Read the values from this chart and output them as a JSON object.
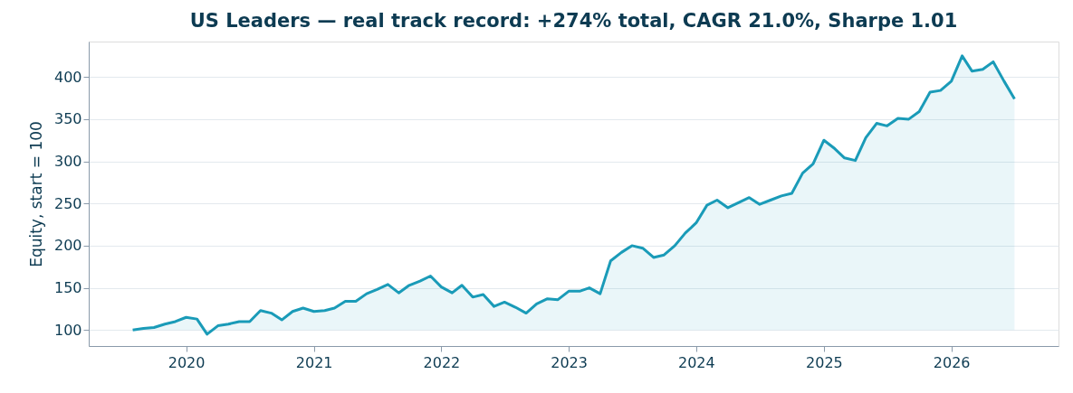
{
  "chart_data": {
    "type": "area",
    "title": "US Leaders — real track record: +274% total, CAGR 21.0%, Sharpe 1.01",
    "ylabel": "Equity, start = 100",
    "x": [
      "2019-08",
      "2019-09",
      "2019-10",
      "2019-11",
      "2019-12",
      "2020-01",
      "2020-02",
      "2020-03",
      "2020-04",
      "2020-05",
      "2020-06",
      "2020-07",
      "2020-08",
      "2020-09",
      "2020-10",
      "2020-11",
      "2020-12",
      "2021-01",
      "2021-02",
      "2021-03",
      "2021-04",
      "2021-05",
      "2021-06",
      "2021-07",
      "2021-08",
      "2021-09",
      "2021-10",
      "2021-11",
      "2021-12",
      "2022-01",
      "2022-02",
      "2022-03",
      "2022-04",
      "2022-05",
      "2022-06",
      "2022-07",
      "2022-08",
      "2022-09",
      "2022-10",
      "2022-11",
      "2022-12",
      "2023-01",
      "2023-02",
      "2023-03",
      "2023-04",
      "2023-05",
      "2023-06",
      "2023-07",
      "2023-08",
      "2023-09",
      "2023-10",
      "2023-11",
      "2023-12",
      "2024-01",
      "2024-02",
      "2024-03",
      "2024-04",
      "2024-05",
      "2024-06",
      "2024-07",
      "2024-08",
      "2024-09",
      "2024-10",
      "2024-11",
      "2024-12",
      "2025-01",
      "2025-02",
      "2025-03",
      "2025-04",
      "2025-05",
      "2025-06",
      "2025-07",
      "2025-08",
      "2025-09",
      "2025-10",
      "2025-11",
      "2025-12",
      "2026-01",
      "2026-02",
      "2026-03",
      "2026-04",
      "2026-05",
      "2026-06",
      "2026-07"
    ],
    "series": [
      {
        "color": "#1a9bb8",
        "values": [
          100,
          102,
          103,
          107,
          110,
          115,
          113,
          95,
          105,
          107,
          110,
          110,
          123,
          120,
          112,
          122,
          126,
          122,
          123,
          126,
          134,
          134,
          143,
          148,
          154,
          144,
          153,
          158,
          164,
          151,
          144,
          153,
          139,
          142,
          128,
          133,
          127,
          120,
          131,
          137,
          136,
          146,
          146,
          150,
          143,
          182,
          192,
          200,
          197,
          186,
          189,
          200,
          215,
          227,
          248,
          254,
          245,
          251,
          257,
          249,
          254,
          259,
          262,
          286,
          297,
          325,
          315,
          304,
          301,
          328,
          345,
          342,
          351,
          350,
          359,
          382,
          384,
          395,
          425,
          407,
          409,
          418,
          395,
          374
        ]
      }
    ],
    "xlim": [
      "2019-03-28",
      "2026-11-04"
    ],
    "xticks": [
      "2020",
      "2021",
      "2022",
      "2023",
      "2024",
      "2025",
      "2026"
    ],
    "ylim": [
      81,
      442
    ],
    "yticks": [
      100,
      150,
      200,
      250,
      300,
      350,
      400
    ],
    "grid": "y",
    "marker": "none",
    "line_style": "solid"
  }
}
